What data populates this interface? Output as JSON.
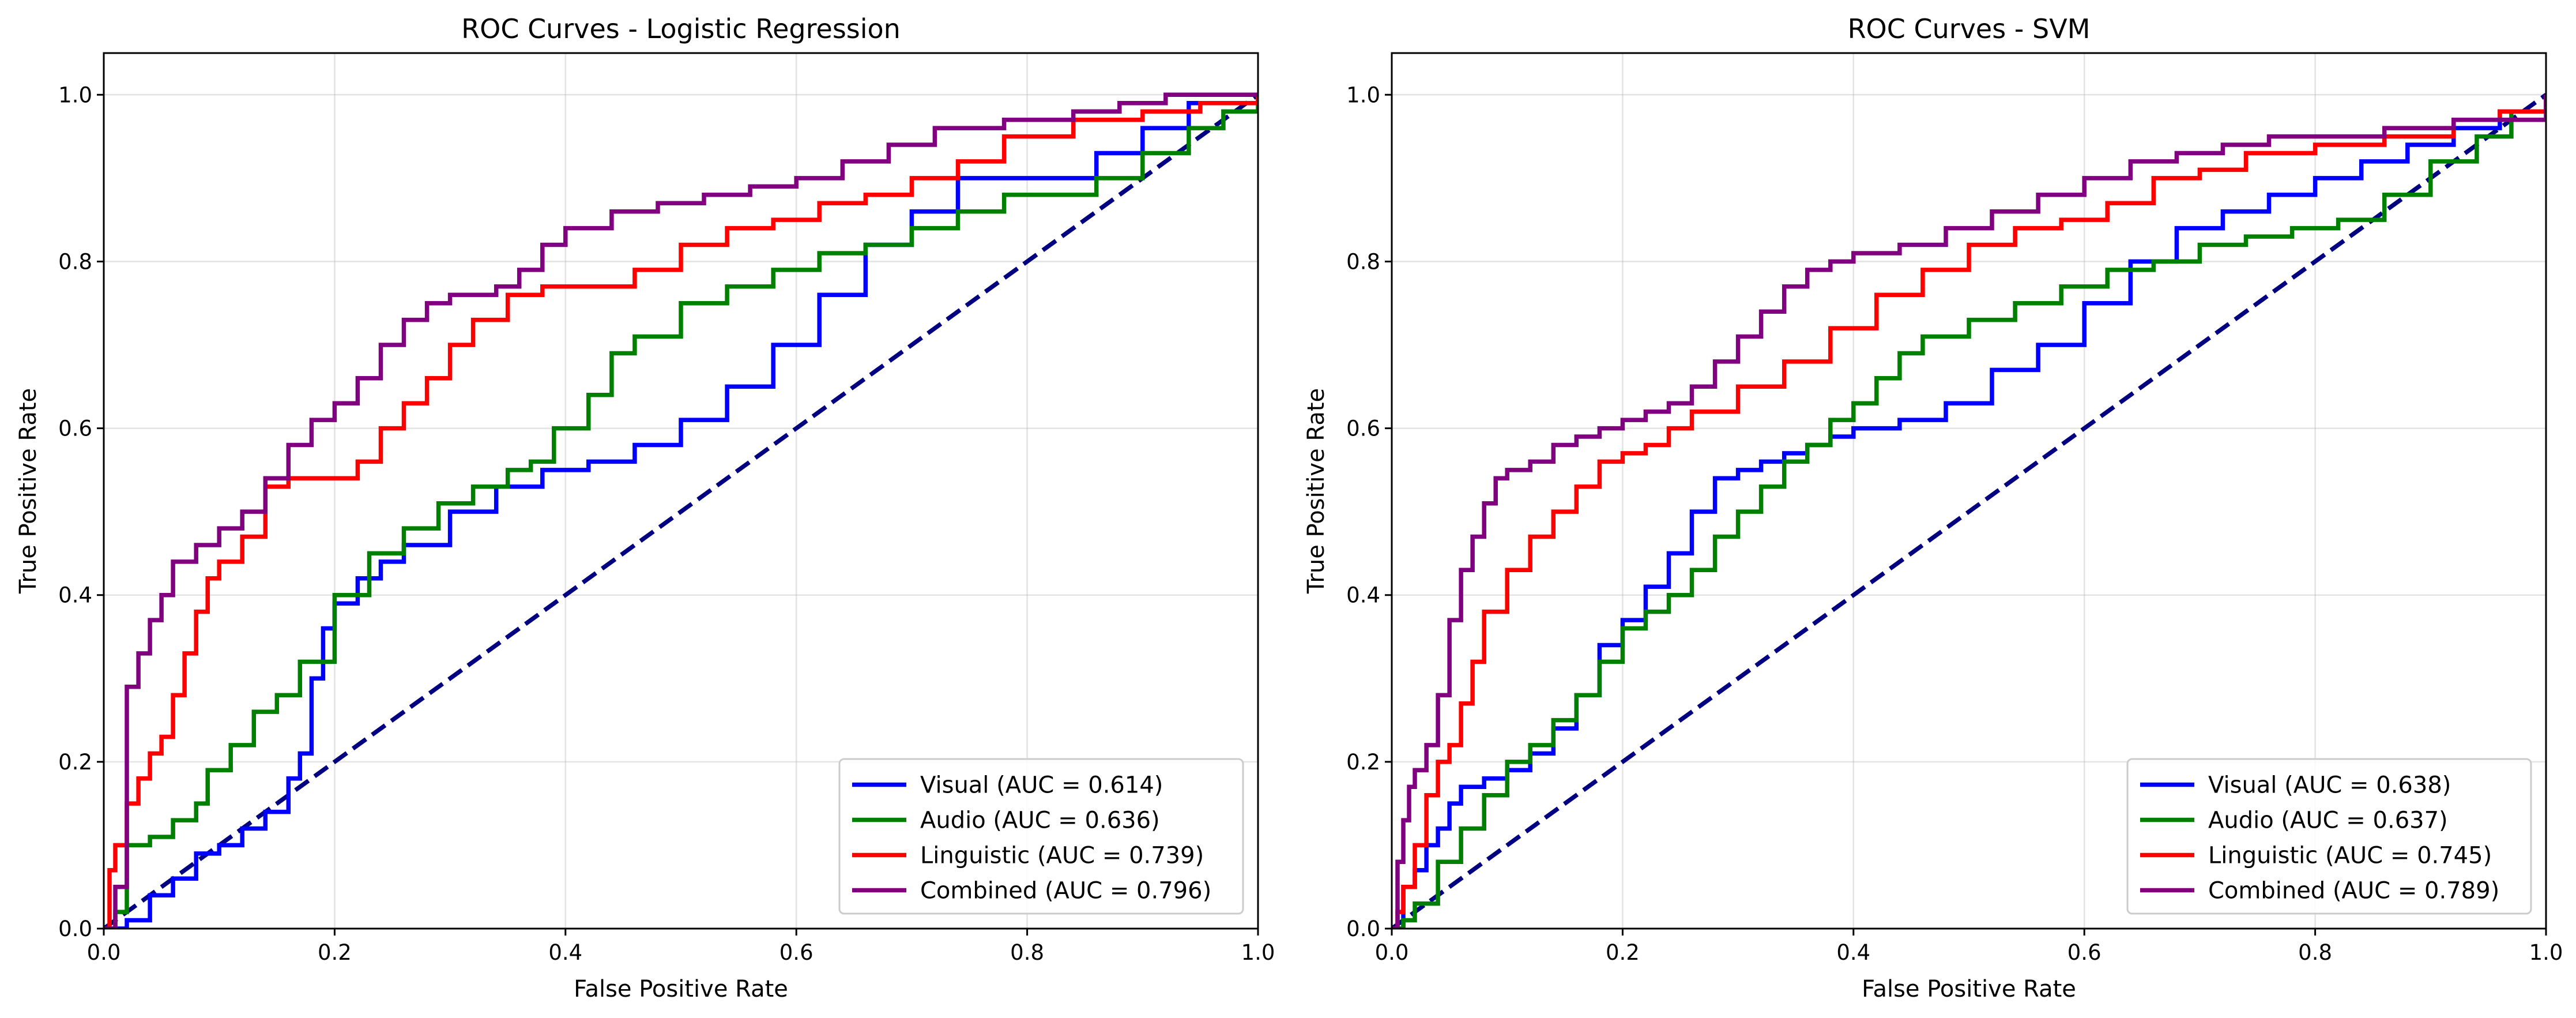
{
  "chart_data": [
    {
      "type": "line",
      "title": "ROC Curves - Logistic Regression",
      "xlabel": "False Positive Rate",
      "ylabel": "True Positive Rate",
      "xlim": [
        0.0,
        1.0
      ],
      "ylim": [
        0.0,
        1.05
      ],
      "xticks": [
        "0.0",
        "0.2",
        "0.4",
        "0.6",
        "0.8",
        "1.0"
      ],
      "yticks": [
        "0.0",
        "0.2",
        "0.4",
        "0.6",
        "0.8",
        "1.0"
      ],
      "grid": true,
      "legend_position": "lower-right",
      "diagonal": {
        "x": [
          0,
          1
        ],
        "y": [
          0,
          1
        ],
        "color": "#000080",
        "style": "dashed"
      },
      "series": [
        {
          "name": "Visual (AUC = 0.614)",
          "color": "#0000ff",
          "x": [
            0.0,
            0.02,
            0.04,
            0.06,
            0.08,
            0.1,
            0.12,
            0.14,
            0.16,
            0.17,
            0.18,
            0.19,
            0.2,
            0.22,
            0.24,
            0.26,
            0.3,
            0.34,
            0.38,
            0.42,
            0.46,
            0.5,
            0.54,
            0.58,
            0.62,
            0.66,
            0.7,
            0.74,
            0.8,
            0.86,
            0.9,
            0.94,
            1.0
          ],
          "y": [
            0.0,
            0.01,
            0.04,
            0.06,
            0.09,
            0.1,
            0.12,
            0.14,
            0.18,
            0.21,
            0.3,
            0.36,
            0.39,
            0.42,
            0.44,
            0.46,
            0.5,
            0.53,
            0.55,
            0.56,
            0.58,
            0.61,
            0.65,
            0.7,
            0.76,
            0.82,
            0.86,
            0.9,
            0.9,
            0.93,
            0.96,
            0.99,
            1.0
          ]
        },
        {
          "name": "Audio (AUC = 0.636)",
          "color": "#008000",
          "x": [
            0.0,
            0.01,
            0.02,
            0.04,
            0.06,
            0.08,
            0.09,
            0.11,
            0.13,
            0.15,
            0.17,
            0.2,
            0.23,
            0.26,
            0.29,
            0.32,
            0.35,
            0.37,
            0.39,
            0.42,
            0.44,
            0.46,
            0.5,
            0.54,
            0.58,
            0.62,
            0.66,
            0.7,
            0.74,
            0.78,
            0.86,
            0.9,
            0.94,
            0.97,
            1.0
          ],
          "y": [
            0.0,
            0.02,
            0.1,
            0.11,
            0.13,
            0.15,
            0.19,
            0.22,
            0.26,
            0.28,
            0.32,
            0.4,
            0.45,
            0.48,
            0.51,
            0.53,
            0.55,
            0.56,
            0.6,
            0.64,
            0.69,
            0.71,
            0.75,
            0.77,
            0.79,
            0.81,
            0.82,
            0.84,
            0.86,
            0.88,
            0.9,
            0.93,
            0.96,
            0.98,
            1.0
          ]
        },
        {
          "name": "Linguistic (AUC = 0.739)",
          "color": "#ff0000",
          "x": [
            0.0,
            0.005,
            0.01,
            0.02,
            0.03,
            0.04,
            0.05,
            0.06,
            0.07,
            0.08,
            0.09,
            0.1,
            0.12,
            0.14,
            0.16,
            0.18,
            0.22,
            0.24,
            0.26,
            0.28,
            0.3,
            0.32,
            0.35,
            0.38,
            0.42,
            0.46,
            0.5,
            0.54,
            0.58,
            0.62,
            0.66,
            0.7,
            0.74,
            0.78,
            0.84,
            0.9,
            0.95,
            1.0
          ],
          "y": [
            0.0,
            0.07,
            0.1,
            0.15,
            0.18,
            0.21,
            0.23,
            0.28,
            0.33,
            0.38,
            0.42,
            0.44,
            0.47,
            0.53,
            0.54,
            0.54,
            0.56,
            0.6,
            0.63,
            0.66,
            0.7,
            0.73,
            0.76,
            0.77,
            0.77,
            0.79,
            0.82,
            0.84,
            0.85,
            0.87,
            0.88,
            0.9,
            0.92,
            0.95,
            0.97,
            0.98,
            0.99,
            1.0
          ]
        },
        {
          "name": "Combined (AUC = 0.796)",
          "color": "#800080",
          "x": [
            0.0,
            0.01,
            0.02,
            0.03,
            0.04,
            0.05,
            0.06,
            0.08,
            0.1,
            0.12,
            0.14,
            0.16,
            0.18,
            0.2,
            0.22,
            0.24,
            0.26,
            0.28,
            0.3,
            0.34,
            0.36,
            0.38,
            0.4,
            0.44,
            0.48,
            0.52,
            0.56,
            0.6,
            0.64,
            0.68,
            0.72,
            0.78,
            0.84,
            0.88,
            0.92,
            1.0
          ],
          "y": [
            0.0,
            0.05,
            0.29,
            0.33,
            0.37,
            0.4,
            0.44,
            0.46,
            0.48,
            0.5,
            0.54,
            0.58,
            0.61,
            0.63,
            0.66,
            0.7,
            0.73,
            0.75,
            0.76,
            0.77,
            0.79,
            0.82,
            0.84,
            0.86,
            0.87,
            0.88,
            0.89,
            0.9,
            0.92,
            0.94,
            0.96,
            0.97,
            0.98,
            0.99,
            1.0,
            1.0
          ]
        }
      ]
    },
    {
      "type": "line",
      "title": "ROC Curves - SVM",
      "xlabel": "False Positive Rate",
      "ylabel": "True Positive Rate",
      "xlim": [
        0.0,
        1.0
      ],
      "ylim": [
        0.0,
        1.05
      ],
      "xticks": [
        "0.0",
        "0.2",
        "0.4",
        "0.6",
        "0.8",
        "1.0"
      ],
      "yticks": [
        "0.0",
        "0.2",
        "0.4",
        "0.6",
        "0.8",
        "1.0"
      ],
      "grid": true,
      "legend_position": "lower-right",
      "diagonal": {
        "x": [
          0,
          1
        ],
        "y": [
          0,
          1
        ],
        "color": "#000080",
        "style": "dashed"
      },
      "series": [
        {
          "name": "Visual (AUC = 0.638)",
          "color": "#0000ff",
          "x": [
            0.0,
            0.01,
            0.02,
            0.03,
            0.04,
            0.05,
            0.06,
            0.08,
            0.1,
            0.12,
            0.14,
            0.16,
            0.18,
            0.2,
            0.22,
            0.24,
            0.26,
            0.28,
            0.3,
            0.32,
            0.34,
            0.36,
            0.38,
            0.4,
            0.44,
            0.48,
            0.52,
            0.56,
            0.6,
            0.64,
            0.68,
            0.72,
            0.76,
            0.8,
            0.84,
            0.88,
            0.92,
            0.96,
            1.0
          ],
          "y": [
            0.0,
            0.05,
            0.07,
            0.1,
            0.12,
            0.15,
            0.17,
            0.18,
            0.19,
            0.21,
            0.24,
            0.28,
            0.34,
            0.37,
            0.41,
            0.45,
            0.5,
            0.54,
            0.55,
            0.56,
            0.57,
            0.58,
            0.59,
            0.6,
            0.61,
            0.63,
            0.67,
            0.7,
            0.75,
            0.8,
            0.84,
            0.86,
            0.88,
            0.9,
            0.92,
            0.94,
            0.96,
            0.98,
            1.0
          ]
        },
        {
          "name": "Audio (AUC = 0.637)",
          "color": "#008000",
          "x": [
            0.0,
            0.01,
            0.02,
            0.04,
            0.06,
            0.08,
            0.1,
            0.12,
            0.14,
            0.16,
            0.18,
            0.2,
            0.22,
            0.24,
            0.26,
            0.28,
            0.3,
            0.32,
            0.34,
            0.36,
            0.38,
            0.4,
            0.42,
            0.44,
            0.46,
            0.5,
            0.54,
            0.58,
            0.62,
            0.66,
            0.7,
            0.74,
            0.78,
            0.82,
            0.86,
            0.9,
            0.94,
            0.97,
            1.0
          ],
          "y": [
            0.0,
            0.01,
            0.03,
            0.08,
            0.12,
            0.16,
            0.2,
            0.22,
            0.25,
            0.28,
            0.32,
            0.36,
            0.38,
            0.4,
            0.43,
            0.47,
            0.5,
            0.53,
            0.56,
            0.58,
            0.61,
            0.63,
            0.66,
            0.69,
            0.71,
            0.73,
            0.75,
            0.77,
            0.79,
            0.8,
            0.82,
            0.83,
            0.84,
            0.85,
            0.88,
            0.92,
            0.95,
            0.98,
            1.0
          ]
        },
        {
          "name": "Linguistic (AUC = 0.745)",
          "color": "#ff0000",
          "x": [
            0.0,
            0.005,
            0.01,
            0.02,
            0.03,
            0.04,
            0.05,
            0.06,
            0.07,
            0.08,
            0.1,
            0.12,
            0.14,
            0.16,
            0.18,
            0.2,
            0.22,
            0.24,
            0.26,
            0.3,
            0.34,
            0.38,
            0.42,
            0.46,
            0.5,
            0.54,
            0.58,
            0.62,
            0.66,
            0.7,
            0.74,
            0.8,
            0.86,
            0.92,
            0.96,
            1.0
          ],
          "y": [
            0.0,
            0.02,
            0.05,
            0.1,
            0.16,
            0.2,
            0.22,
            0.27,
            0.32,
            0.38,
            0.43,
            0.47,
            0.5,
            0.53,
            0.56,
            0.57,
            0.58,
            0.6,
            0.62,
            0.65,
            0.68,
            0.72,
            0.76,
            0.79,
            0.82,
            0.84,
            0.85,
            0.87,
            0.9,
            0.91,
            0.93,
            0.94,
            0.95,
            0.97,
            0.98,
            1.0
          ]
        },
        {
          "name": "Combined (AUC = 0.789)",
          "color": "#800080",
          "x": [
            0.0,
            0.005,
            0.01,
            0.015,
            0.02,
            0.03,
            0.04,
            0.05,
            0.06,
            0.07,
            0.08,
            0.09,
            0.1,
            0.12,
            0.14,
            0.16,
            0.18,
            0.2,
            0.22,
            0.24,
            0.26,
            0.28,
            0.3,
            0.32,
            0.34,
            0.36,
            0.38,
            0.4,
            0.44,
            0.48,
            0.52,
            0.56,
            0.6,
            0.64,
            0.68,
            0.72,
            0.76,
            0.8,
            0.86,
            0.92,
            1.0
          ],
          "y": [
            0.0,
            0.08,
            0.13,
            0.17,
            0.19,
            0.22,
            0.28,
            0.37,
            0.43,
            0.47,
            0.51,
            0.54,
            0.55,
            0.56,
            0.58,
            0.59,
            0.6,
            0.61,
            0.62,
            0.63,
            0.65,
            0.68,
            0.71,
            0.74,
            0.77,
            0.79,
            0.8,
            0.81,
            0.82,
            0.84,
            0.86,
            0.88,
            0.9,
            0.92,
            0.93,
            0.94,
            0.95,
            0.95,
            0.96,
            0.97,
            1.0
          ]
        }
      ]
    }
  ]
}
